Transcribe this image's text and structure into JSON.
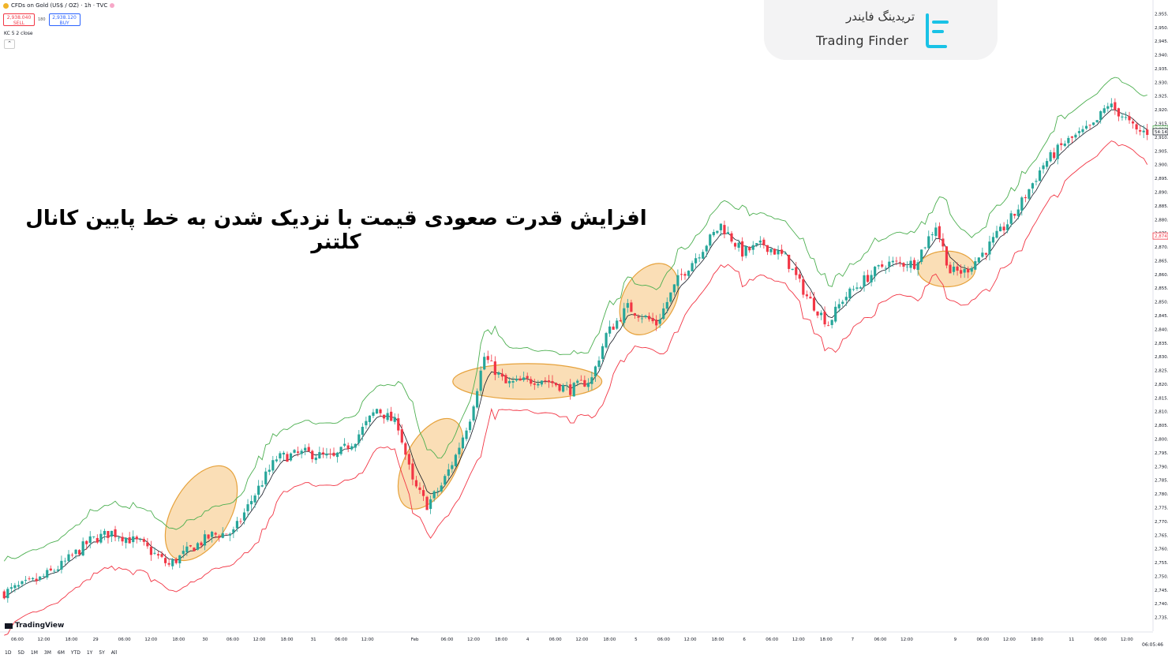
{
  "header": {
    "symbol": "CFDs on Gold (US$ / OZ) · 1h · TVC",
    "sell_price": "2,938.040",
    "sell_label": "SELL",
    "spread": "180",
    "buy_price": "2,938.120",
    "buy_label": "BUY",
    "indicator": "KC 5 2 close",
    "collapse_glyph": "⌃"
  },
  "branding": {
    "persian_name": "تریدینگ فایندر",
    "english_name": "Trading Finder",
    "tv_label": "TradingView"
  },
  "headline": "افزایش قدرت صعودی قیمت با نزدیک شدن به خط پایین کانال کلتنر",
  "footer": {
    "ranges": [
      "1D",
      "5D",
      "1M",
      "3M",
      "6M",
      "YTD",
      "1Y",
      "5Y",
      "All"
    ],
    "clock": "06:05:46"
  },
  "price_labels": [
    {
      "text": "2,913",
      "value": 2913,
      "color": "#4caf50"
    },
    {
      "text": "54:14",
      "value": 2912,
      "color": "#131722"
    },
    {
      "text": "2,874",
      "value": 2874,
      "color": "#f23645"
    }
  ],
  "colors": {
    "up": "#26a69a",
    "down": "#f23645",
    "upper_band": "#4caf50",
    "lower_band": "#f23645",
    "middle": "#131722",
    "highlight_fill": "#f5c27a",
    "highlight_stroke": "#e6a23c"
  },
  "chart_data": {
    "type": "candlestick",
    "indicator": "Keltner Channels (5, 2, close)",
    "ylim": [
      2730,
      2960
    ],
    "y_ticks": [
      2955,
      2950,
      2945,
      2940,
      2935,
      2930,
      2925,
      2920,
      2915,
      2910,
      2905,
      2900,
      2895,
      2890,
      2885,
      2880,
      2875,
      2870,
      2865,
      2860,
      2855,
      2850,
      2845,
      2840,
      2835,
      2830,
      2825,
      2820,
      2815,
      2810,
      2805,
      2800,
      2795,
      2790,
      2785,
      2780,
      2775,
      2770,
      2765,
      2760,
      2755,
      2750,
      2745,
      2740,
      2735
    ],
    "x_ticks": [
      {
        "label": "06:00",
        "at": 0.015
      },
      {
        "label": "12:00",
        "at": 0.038
      },
      {
        "label": "18:00",
        "at": 0.062
      },
      {
        "label": "29",
        "at": 0.083
      },
      {
        "label": "06:00",
        "at": 0.108
      },
      {
        "label": "12:00",
        "at": 0.131
      },
      {
        "label": "18:00",
        "at": 0.155
      },
      {
        "label": "30",
        "at": 0.178
      },
      {
        "label": "06:00",
        "at": 0.202
      },
      {
        "label": "12:00",
        "at": 0.225
      },
      {
        "label": "18:00",
        "at": 0.249
      },
      {
        "label": "31",
        "at": 0.272
      },
      {
        "label": "06:00",
        "at": 0.296
      },
      {
        "label": "12:00",
        "at": 0.319
      },
      {
        "label": "Feb",
        "at": 0.36
      },
      {
        "label": "06:00",
        "at": 0.388
      },
      {
        "label": "12:00",
        "at": 0.411
      },
      {
        "label": "18:00",
        "at": 0.435
      },
      {
        "label": "4",
        "at": 0.458
      },
      {
        "label": "06:00",
        "at": 0.482
      },
      {
        "label": "12:00",
        "at": 0.505
      },
      {
        "label": "18:00",
        "at": 0.529
      },
      {
        "label": "5",
        "at": 0.552
      },
      {
        "label": "06:00",
        "at": 0.576
      },
      {
        "label": "12:00",
        "at": 0.599
      },
      {
        "label": "18:00",
        "at": 0.623
      },
      {
        "label": "6",
        "at": 0.646
      },
      {
        "label": "06:00",
        "at": 0.67
      },
      {
        "label": "12:00",
        "at": 0.693
      },
      {
        "label": "18:00",
        "at": 0.717
      },
      {
        "label": "7",
        "at": 0.74
      },
      {
        "label": "06:00",
        "at": 0.764
      },
      {
        "label": "12:00",
        "at": 0.787
      },
      {
        "label": "9",
        "at": 0.829
      },
      {
        "label": "06:00",
        "at": 0.853
      },
      {
        "label": "12:00",
        "at": 0.876
      },
      {
        "label": "18:00",
        "at": 0.9
      },
      {
        "label": "11",
        "at": 0.93
      },
      {
        "label": "06:00",
        "at": 0.955
      },
      {
        "label": "12:00",
        "at": 0.978
      }
    ],
    "anchors": [
      [
        0,
        2744
      ],
      [
        10,
        2749
      ],
      [
        16,
        2754
      ],
      [
        24,
        2763
      ],
      [
        30,
        2766
      ],
      [
        38,
        2762
      ],
      [
        46,
        2754
      ],
      [
        52,
        2760
      ],
      [
        58,
        2765
      ],
      [
        64,
        2766
      ],
      [
        70,
        2780
      ],
      [
        76,
        2793
      ],
      [
        84,
        2795
      ],
      [
        92,
        2793
      ],
      [
        98,
        2800
      ],
      [
        104,
        2811
      ],
      [
        110,
        2805
      ],
      [
        114,
        2784
      ],
      [
        118,
        2776
      ],
      [
        122,
        2783
      ],
      [
        126,
        2794
      ],
      [
        130,
        2808
      ],
      [
        134,
        2830
      ],
      [
        140,
        2820
      ],
      [
        150,
        2822
      ],
      [
        158,
        2818
      ],
      [
        164,
        2822
      ],
      [
        168,
        2838
      ],
      [
        174,
        2848
      ],
      [
        182,
        2842
      ],
      [
        188,
        2858
      ],
      [
        194,
        2868
      ],
      [
        200,
        2878
      ],
      [
        206,
        2868
      ],
      [
        212,
        2871
      ],
      [
        218,
        2866
      ],
      [
        224,
        2852
      ],
      [
        230,
        2842
      ],
      [
        234,
        2851
      ],
      [
        240,
        2858
      ],
      [
        246,
        2864
      ],
      [
        254,
        2864
      ],
      [
        260,
        2878
      ],
      [
        264,
        2861
      ],
      [
        268,
        2861
      ],
      [
        274,
        2869
      ],
      [
        282,
        2882
      ],
      [
        290,
        2900
      ],
      [
        296,
        2908
      ],
      [
        304,
        2914
      ],
      [
        308,
        2922
      ],
      [
        312,
        2918
      ],
      [
        316,
        2912
      ]
    ],
    "highlights": [
      {
        "label": "touch-1",
        "cx": 55,
        "cy": 2773,
        "rx": 5,
        "ry": 19,
        "rot": 30
      },
      {
        "label": "touch-2",
        "cx": 119,
        "cy": 2791,
        "rx": 4.5,
        "ry": 18,
        "rot": 28
      },
      {
        "label": "touch-3",
        "cx": 146,
        "cy": 2821,
        "rx": 13,
        "ry": 6.5,
        "rot": 0
      },
      {
        "label": "touch-4",
        "cx": 180,
        "cy": 2851,
        "rx": 4.5,
        "ry": 14,
        "rot": 30
      },
      {
        "label": "touch-5",
        "cx": 263,
        "cy": 2862,
        "rx": 5,
        "ry": 6.5,
        "rot": 0
      }
    ]
  }
}
